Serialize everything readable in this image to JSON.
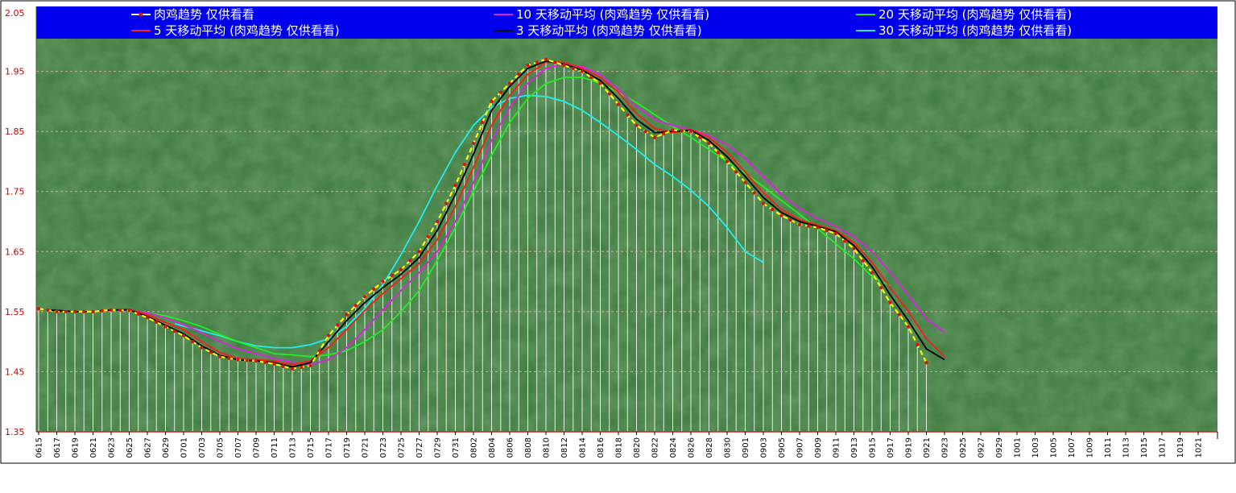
{
  "chart_data": {
    "type": "line",
    "ylim": [
      1.35,
      2.05
    ],
    "y_ticks": [
      "2.05",
      "1.95",
      "1.85",
      "1.75",
      "1.65",
      "1.55",
      "1.45",
      "1.35"
    ],
    "x_tick_labels": [
      "0615",
      "0617",
      "0619",
      "0621",
      "0623",
      "0625",
      "0627",
      "0629",
      "0701",
      "0703",
      "0705",
      "0707",
      "0709",
      "0711",
      "0713",
      "0715",
      "0717",
      "0719",
      "0721",
      "0723",
      "0725",
      "0727",
      "0729",
      "0731",
      "0802",
      "0804",
      "0806",
      "0808",
      "0810",
      "0812",
      "0814",
      "0816",
      "0818",
      "0820",
      "0822",
      "0824",
      "0826",
      "0828",
      "0830",
      "0901",
      "0903",
      "0905",
      "0907",
      "0909",
      "0911",
      "0913",
      "0915",
      "0917",
      "0919",
      "0921",
      "0923",
      "0925",
      "0927",
      "0929",
      "1001",
      "1003",
      "1005",
      "1007",
      "1009",
      "1011",
      "1013",
      "1015",
      "1017",
      "1019",
      "1021"
    ],
    "grid": true,
    "legend_position": "top",
    "series": [
      {
        "name": "肉鸡趋势 仅供看看",
        "color": "#ffff00",
        "marker_color": "#dd1111",
        "points": [
          [
            0,
            1.555
          ],
          [
            2,
            1.55
          ],
          [
            4,
            1.55
          ],
          [
            6,
            1.55
          ],
          [
            8,
            1.553
          ],
          [
            10,
            1.552
          ],
          [
            12,
            1.54
          ],
          [
            14,
            1.525
          ],
          [
            16,
            1.51
          ],
          [
            18,
            1.49
          ],
          [
            20,
            1.475
          ],
          [
            22,
            1.47
          ],
          [
            24,
            1.468
          ],
          [
            26,
            1.463
          ],
          [
            28,
            1.455
          ],
          [
            30,
            1.46
          ],
          [
            32,
            1.51
          ],
          [
            34,
            1.545
          ],
          [
            36,
            1.575
          ],
          [
            38,
            1.6
          ],
          [
            40,
            1.62
          ],
          [
            42,
            1.65
          ],
          [
            44,
            1.7
          ],
          [
            46,
            1.76
          ],
          [
            48,
            1.83
          ],
          [
            50,
            1.9
          ],
          [
            52,
            1.93
          ],
          [
            54,
            1.96
          ],
          [
            56,
            1.97
          ],
          [
            58,
            1.96
          ],
          [
            60,
            1.95
          ],
          [
            62,
            1.93
          ],
          [
            64,
            1.895
          ],
          [
            66,
            1.86
          ],
          [
            68,
            1.84
          ],
          [
            70,
            1.852
          ],
          [
            72,
            1.85
          ],
          [
            74,
            1.83
          ],
          [
            76,
            1.8
          ],
          [
            78,
            1.765
          ],
          [
            80,
            1.73
          ],
          [
            82,
            1.71
          ],
          [
            84,
            1.695
          ],
          [
            86,
            1.69
          ],
          [
            88,
            1.68
          ],
          [
            90,
            1.655
          ],
          [
            92,
            1.615
          ],
          [
            94,
            1.565
          ],
          [
            96,
            1.525
          ],
          [
            98,
            1.465
          ]
        ]
      },
      {
        "name": "5 天移动平均 (肉鸡趋势 仅供看看)",
        "color": "#ff1a1a",
        "points": [
          [
            2,
            1.55
          ],
          [
            4,
            1.55
          ],
          [
            6,
            1.55
          ],
          [
            8,
            1.552
          ],
          [
            10,
            1.554
          ],
          [
            12,
            1.545
          ],
          [
            14,
            1.532
          ],
          [
            16,
            1.52
          ],
          [
            18,
            1.5
          ],
          [
            20,
            1.482
          ],
          [
            22,
            1.472
          ],
          [
            24,
            1.47
          ],
          [
            26,
            1.468
          ],
          [
            28,
            1.462
          ],
          [
            30,
            1.468
          ],
          [
            32,
            1.49
          ],
          [
            34,
            1.52
          ],
          [
            36,
            1.552
          ],
          [
            38,
            1.58
          ],
          [
            40,
            1.605
          ],
          [
            42,
            1.63
          ],
          [
            44,
            1.67
          ],
          [
            46,
            1.725
          ],
          [
            48,
            1.79
          ],
          [
            50,
            1.86
          ],
          [
            52,
            1.91
          ],
          [
            54,
            1.945
          ],
          [
            56,
            1.965
          ],
          [
            58,
            1.965
          ],
          [
            60,
            1.955
          ],
          [
            62,
            1.94
          ],
          [
            64,
            1.915
          ],
          [
            66,
            1.88
          ],
          [
            68,
            1.855
          ],
          [
            70,
            1.848
          ],
          [
            72,
            1.853
          ],
          [
            74,
            1.84
          ],
          [
            76,
            1.815
          ],
          [
            78,
            1.782
          ],
          [
            80,
            1.748
          ],
          [
            82,
            1.72
          ],
          [
            84,
            1.703
          ],
          [
            86,
            1.694
          ],
          [
            88,
            1.685
          ],
          [
            90,
            1.665
          ],
          [
            92,
            1.632
          ],
          [
            94,
            1.59
          ],
          [
            96,
            1.55
          ],
          [
            98,
            1.505
          ],
          [
            100,
            1.475
          ]
        ]
      },
      {
        "name": "3 天移动平均 (肉鸡趋势 仅供看看)",
        "color": "#000000",
        "points": [
          [
            1,
            1.553
          ],
          [
            4,
            1.55
          ],
          [
            6,
            1.55
          ],
          [
            8,
            1.553
          ],
          [
            10,
            1.553
          ],
          [
            12,
            1.542
          ],
          [
            14,
            1.527
          ],
          [
            16,
            1.513
          ],
          [
            18,
            1.493
          ],
          [
            20,
            1.477
          ],
          [
            22,
            1.47
          ],
          [
            24,
            1.468
          ],
          [
            26,
            1.465
          ],
          [
            28,
            1.458
          ],
          [
            30,
            1.465
          ],
          [
            32,
            1.5
          ],
          [
            34,
            1.535
          ],
          [
            36,
            1.565
          ],
          [
            38,
            1.59
          ],
          [
            40,
            1.612
          ],
          [
            42,
            1.64
          ],
          [
            44,
            1.685
          ],
          [
            46,
            1.745
          ],
          [
            48,
            1.812
          ],
          [
            50,
            1.885
          ],
          [
            52,
            1.925
          ],
          [
            54,
            1.955
          ],
          [
            56,
            1.967
          ],
          [
            58,
            1.962
          ],
          [
            60,
            1.952
          ],
          [
            62,
            1.935
          ],
          [
            64,
            1.905
          ],
          [
            66,
            1.87
          ],
          [
            68,
            1.848
          ],
          [
            70,
            1.85
          ],
          [
            72,
            1.852
          ],
          [
            74,
            1.835
          ],
          [
            76,
            1.808
          ],
          [
            78,
            1.775
          ],
          [
            80,
            1.74
          ],
          [
            82,
            1.715
          ],
          [
            84,
            1.7
          ],
          [
            86,
            1.692
          ],
          [
            88,
            1.683
          ],
          [
            90,
            1.66
          ],
          [
            92,
            1.625
          ],
          [
            94,
            1.578
          ],
          [
            96,
            1.535
          ],
          [
            98,
            1.488
          ],
          [
            100,
            1.47
          ]
        ]
      },
      {
        "name": "10 天移动平均 (肉鸡趋势 仅供看看)",
        "color": "#dd22dd",
        "points": [
          [
            9,
            1.552
          ],
          [
            10,
            1.552
          ],
          [
            12,
            1.548
          ],
          [
            14,
            1.54
          ],
          [
            16,
            1.528
          ],
          [
            18,
            1.515
          ],
          [
            20,
            1.5
          ],
          [
            22,
            1.488
          ],
          [
            24,
            1.48
          ],
          [
            26,
            1.472
          ],
          [
            28,
            1.466
          ],
          [
            30,
            1.462
          ],
          [
            32,
            1.47
          ],
          [
            34,
            1.49
          ],
          [
            36,
            1.52
          ],
          [
            38,
            1.553
          ],
          [
            40,
            1.585
          ],
          [
            42,
            1.615
          ],
          [
            44,
            1.65
          ],
          [
            46,
            1.7
          ],
          [
            48,
            1.765
          ],
          [
            50,
            1.835
          ],
          [
            52,
            1.89
          ],
          [
            54,
            1.93
          ],
          [
            56,
            1.955
          ],
          [
            58,
            1.962
          ],
          [
            60,
            1.958
          ],
          [
            62,
            1.945
          ],
          [
            64,
            1.92
          ],
          [
            66,
            1.892
          ],
          [
            68,
            1.87
          ],
          [
            70,
            1.86
          ],
          [
            72,
            1.853
          ],
          [
            74,
            1.843
          ],
          [
            76,
            1.828
          ],
          [
            78,
            1.805
          ],
          [
            80,
            1.775
          ],
          [
            82,
            1.745
          ],
          [
            84,
            1.722
          ],
          [
            86,
            1.705
          ],
          [
            88,
            1.692
          ],
          [
            90,
            1.675
          ],
          [
            92,
            1.65
          ],
          [
            94,
            1.615
          ],
          [
            96,
            1.578
          ],
          [
            98,
            1.538
          ],
          [
            100,
            1.515
          ]
        ]
      },
      {
        "name": "20 天移动平均 (肉鸡趋势 仅供看看)",
        "color": "#22ee22",
        "points": [
          [
            10,
            1.552
          ],
          [
            12,
            1.548
          ],
          [
            14,
            1.543
          ],
          [
            16,
            1.535
          ],
          [
            18,
            1.525
          ],
          [
            20,
            1.512
          ],
          [
            22,
            1.5
          ],
          [
            24,
            1.49
          ],
          [
            26,
            1.48
          ],
          [
            28,
            1.478
          ],
          [
            30,
            1.475
          ],
          [
            32,
            1.478
          ],
          [
            34,
            1.485
          ],
          [
            36,
            1.5
          ],
          [
            38,
            1.52
          ],
          [
            40,
            1.55
          ],
          [
            42,
            1.585
          ],
          [
            44,
            1.635
          ],
          [
            46,
            1.69
          ],
          [
            48,
            1.75
          ],
          [
            50,
            1.81
          ],
          [
            52,
            1.865
          ],
          [
            54,
            1.905
          ],
          [
            56,
            1.93
          ],
          [
            58,
            1.94
          ],
          [
            60,
            1.94
          ],
          [
            62,
            1.93
          ],
          [
            64,
            1.915
          ],
          [
            66,
            1.898
          ],
          [
            68,
            1.878
          ],
          [
            70,
            1.858
          ],
          [
            72,
            1.84
          ],
          [
            74,
            1.82
          ],
          [
            76,
            1.8
          ],
          [
            78,
            1.78
          ],
          [
            80,
            1.758
          ],
          [
            82,
            1.735
          ],
          [
            84,
            1.712
          ],
          [
            86,
            1.688
          ],
          [
            88,
            1.663
          ],
          [
            90,
            1.638
          ],
          [
            92,
            1.608
          ],
          [
            94,
            1.593
          ]
        ]
      },
      {
        "name": "30 天移动平均 (肉鸡趋势 仅供看看)",
        "color": "#22eeee",
        "points": [
          [
            15,
            1.53
          ],
          [
            18,
            1.518
          ],
          [
            20,
            1.51
          ],
          [
            22,
            1.5
          ],
          [
            24,
            1.493
          ],
          [
            26,
            1.49
          ],
          [
            28,
            1.49
          ],
          [
            30,
            1.495
          ],
          [
            32,
            1.505
          ],
          [
            34,
            1.525
          ],
          [
            36,
            1.555
          ],
          [
            38,
            1.595
          ],
          [
            40,
            1.645
          ],
          [
            42,
            1.7
          ],
          [
            44,
            1.76
          ],
          [
            46,
            1.815
          ],
          [
            48,
            1.86
          ],
          [
            50,
            1.89
          ],
          [
            52,
            1.905
          ],
          [
            54,
            1.91
          ],
          [
            56,
            1.908
          ],
          [
            58,
            1.9
          ],
          [
            60,
            1.885
          ],
          [
            62,
            1.865
          ],
          [
            64,
            1.843
          ],
          [
            66,
            1.82
          ],
          [
            68,
            1.795
          ],
          [
            70,
            1.775
          ],
          [
            72,
            1.752
          ],
          [
            74,
            1.725
          ],
          [
            76,
            1.69
          ],
          [
            78,
            1.65
          ],
          [
            80,
            1.632
          ]
        ]
      }
    ]
  }
}
